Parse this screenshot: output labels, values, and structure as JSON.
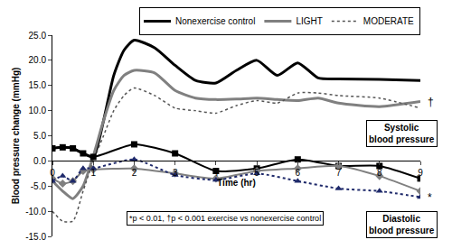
{
  "chart_data": {
    "type": "line",
    "x_label": "Time (hr)",
    "y_label": "Blood pressure change (mmHg)",
    "xlim": [
      0,
      9
    ],
    "xticks": [
      0,
      1,
      2,
      3,
      4,
      5,
      6,
      7,
      8,
      9
    ],
    "ylim": [
      -15,
      25
    ],
    "yticks": [
      {
        "value": -15,
        "label": "-15.0"
      },
      {
        "value": -10,
        "label": "-10.0"
      },
      {
        "value": -5,
        "label": "-5.0"
      },
      {
        "value": 0,
        "label": "0.0"
      },
      {
        "value": 5,
        "label": "5.0"
      },
      {
        "value": 10,
        "label": "10.0"
      },
      {
        "value": 15,
        "label": "15.0"
      },
      {
        "value": 20,
        "label": "20.0"
      },
      {
        "value": 25,
        "label": "25.0"
      }
    ],
    "grid": false,
    "legend": "top right",
    "annotations": [
      "Systolic blood pressure",
      "Diastolic blood pressure",
      "*p < 0.01, †p < 0.001 exercise vs nonexercise control",
      "†",
      "*"
    ],
    "series": [
      {
        "name": "Nonexercise control",
        "color": "#000000",
        "line_style": "solid",
        "x": [
          0,
          0.25,
          0.5,
          0.75,
          1,
          1.25,
          1.5,
          1.75,
          2,
          2.5,
          3,
          3.5,
          4,
          4.5,
          5,
          5.5,
          6,
          6.5,
          7,
          8,
          9
        ],
        "values": [
          2.5,
          2.7,
          2.5,
          1.5,
          0.8,
          8,
          17,
          22,
          24,
          22.5,
          19,
          16,
          15.5,
          18,
          20,
          17,
          19.5,
          16.5,
          16.3,
          16.2,
          16
        ]
      },
      {
        "name": "LIGHT",
        "color": "#808080",
        "line_style": "solid",
        "x": [
          0,
          0.25,
          0.5,
          0.75,
          1,
          1.25,
          1.5,
          1.75,
          2,
          2.5,
          3,
          3.5,
          4,
          4.5,
          5,
          5.5,
          6,
          6.5,
          7,
          8,
          9
        ],
        "values": [
          -4,
          -6,
          -7.5,
          -5,
          1,
          8,
          14,
          17,
          18,
          17.5,
          14,
          12.5,
          12.2,
          12.3,
          12.5,
          12.2,
          12,
          12.5,
          11.5,
          10.8,
          11.8
        ]
      },
      {
        "name": "MODERATE",
        "color": "#555555",
        "line_style": "dot",
        "x": [
          0,
          0.25,
          0.5,
          0.75,
          1,
          1.25,
          1.5,
          1.75,
          2,
          2.5,
          3,
          3.5,
          4,
          4.5,
          5,
          5.5,
          6,
          6.5,
          7,
          8,
          9
        ],
        "values": [
          -10,
          -12,
          -12,
          -6,
          0,
          5,
          10,
          13,
          14.5,
          13,
          10.5,
          10,
          9.5,
          11,
          12,
          11.5,
          13.5,
          13.5,
          13,
          12.5,
          10.5
        ]
      },
      {
        "name": "Nonexercise control",
        "color": "#000000",
        "line_style": "solid",
        "marker": "square",
        "x": [
          0,
          0.25,
          0.5,
          0.75,
          1,
          2,
          3,
          4,
          5,
          6,
          7,
          8,
          9
        ],
        "values": [
          2.5,
          2.7,
          2.5,
          1.5,
          0.8,
          3.3,
          1.5,
          -2,
          -1.5,
          0.3,
          -1,
          -1,
          -3.5
        ]
      },
      {
        "name": "LIGHT",
        "color": "#808080",
        "line_style": "solid",
        "marker": "diamond",
        "x": [
          0,
          0.25,
          0.5,
          0.75,
          1,
          2,
          3,
          4,
          5,
          6,
          7,
          8,
          9
        ],
        "values": [
          -3.5,
          -4.5,
          -4,
          -2,
          -1.7,
          -1.5,
          -2.5,
          -3.5,
          -2,
          -1.5,
          -1,
          -3,
          -6
        ]
      },
      {
        "name": "MODERATE",
        "color": "#1f2a6b",
        "line_style": "dot",
        "marker": "triangle-up",
        "x": [
          0,
          0.25,
          0.5,
          0.75,
          1,
          2,
          3,
          4,
          5,
          6,
          7,
          8,
          9
        ],
        "values": [
          -4,
          -3,
          -4,
          -1.5,
          -1.5,
          0.3,
          -2.8,
          -3.8,
          -2.5,
          -4,
          -5.5,
          -6,
          -7.2
        ]
      }
    ]
  }
}
